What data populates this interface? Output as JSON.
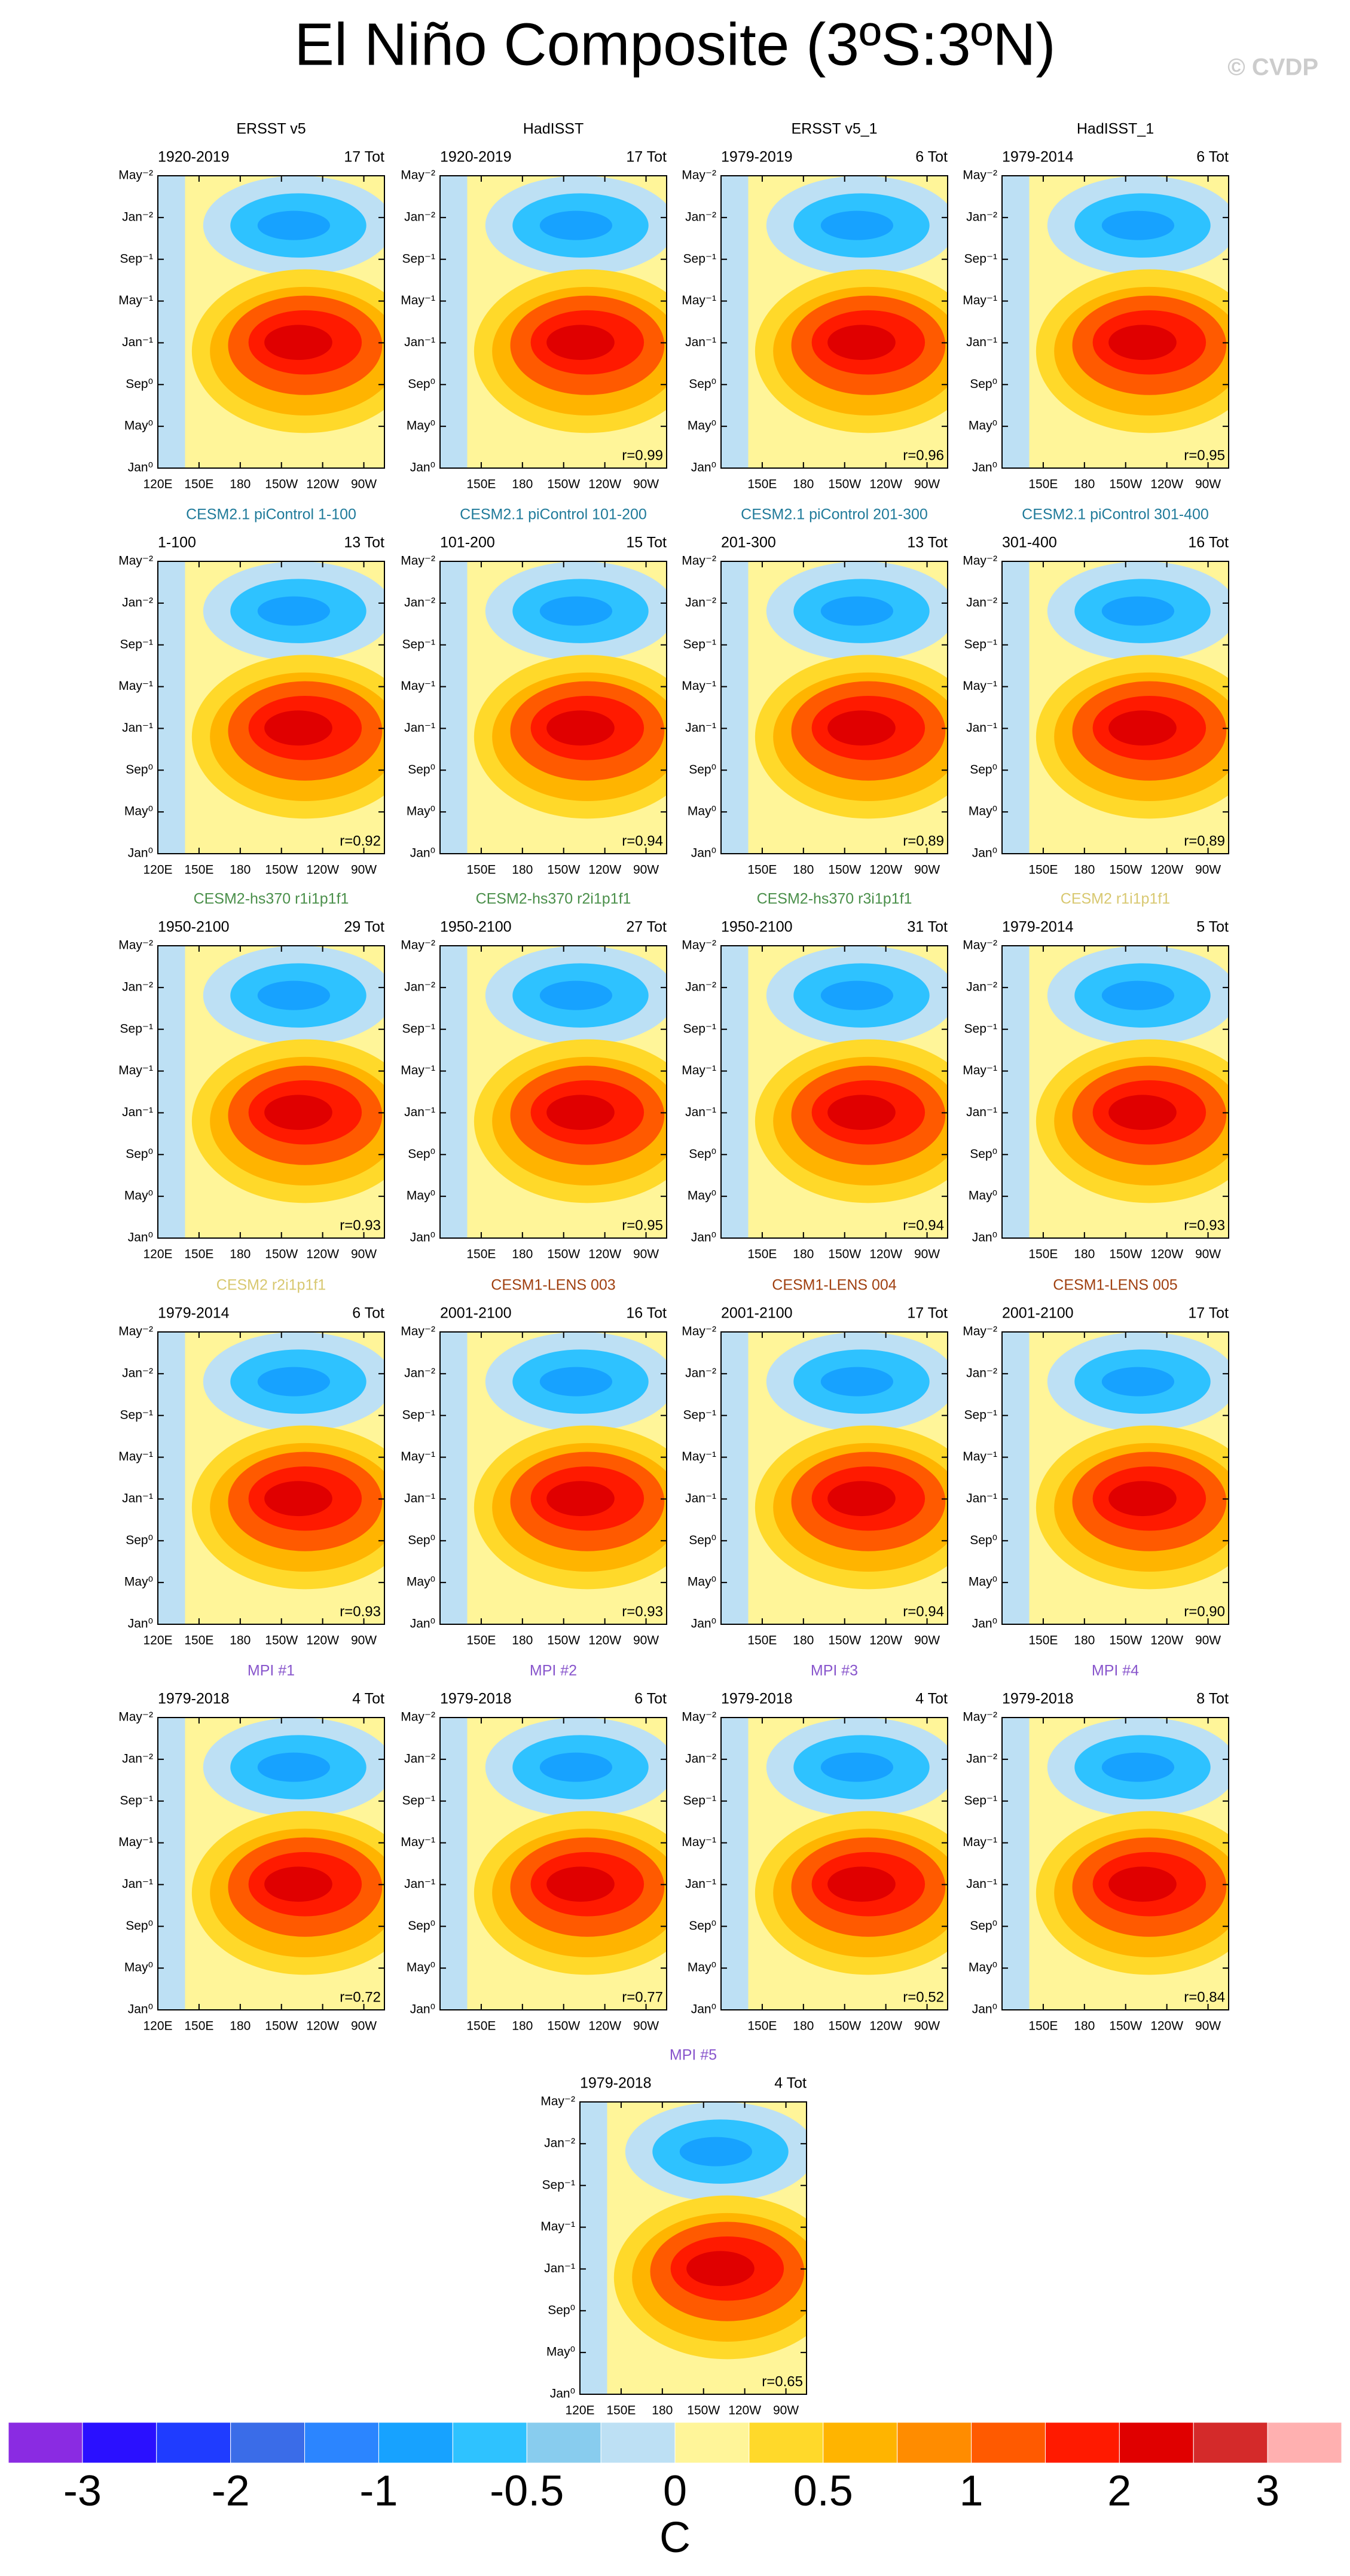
{
  "chart_data": {
    "type": "contour-panels",
    "title": "El Niño Composite (3ºS:3ºN)",
    "watermark": "© CVDP",
    "yaxis_labels": [
      "May⁻²",
      "Jan⁻²",
      "Sep⁻¹",
      "May⁻¹",
      "Jan⁻¹",
      "Sep⁰",
      "May⁰",
      "Jan⁰"
    ],
    "xaxis_labels": [
      "120E",
      "150E",
      "180",
      "150W",
      "120W",
      "90W"
    ],
    "panels": [
      {
        "title": "ERSST v5",
        "color": "#000000",
        "left": "1920-2019",
        "right": "17 Tot"
      },
      {
        "title": "HadISST",
        "color": "#000000",
        "left": "1920-2019",
        "right": "17 Tot",
        "r": "r=0.99"
      },
      {
        "title": "ERSST v5_1",
        "color": "#000000",
        "left": "1979-2019",
        "right": "6 Tot",
        "r": "r=0.96"
      },
      {
        "title": "HadISST_1",
        "color": "#000000",
        "left": "1979-2014",
        "right": "6 Tot",
        "r": "r=0.95"
      },
      {
        "title": "CESM2.1 piControl 1-100",
        "color": "#1f7a9a",
        "left": "1-100",
        "right": "13 Tot",
        "r": "r=0.92"
      },
      {
        "title": "CESM2.1 piControl 101-200",
        "color": "#1f7a9a",
        "left": "101-200",
        "right": "15 Tot",
        "r": "r=0.94"
      },
      {
        "title": "CESM2.1 piControl 201-300",
        "color": "#1f7a9a",
        "left": "201-300",
        "right": "13 Tot",
        "r": "r=0.89"
      },
      {
        "title": "CESM2.1 piControl 301-400",
        "color": "#1f7a9a",
        "left": "301-400",
        "right": "16 Tot",
        "r": "r=0.89"
      },
      {
        "title": "CESM2-hs370 r1i1p1f1",
        "color": "#4a8f4a",
        "left": "1950-2100",
        "right": "29 Tot",
        "r": "r=0.93"
      },
      {
        "title": "CESM2-hs370 r2i1p1f1",
        "color": "#4a8f4a",
        "left": "1950-2100",
        "right": "27 Tot",
        "r": "r=0.95"
      },
      {
        "title": "CESM2-hs370 r3i1p1f1",
        "color": "#4a8f4a",
        "left": "1950-2100",
        "right": "31 Tot",
        "r": "r=0.94"
      },
      {
        "title": "CESM2 r1i1p1f1",
        "color": "#d8c870",
        "left": "1979-2014",
        "right": "5 Tot",
        "r": "r=0.93"
      },
      {
        "title": "CESM2 r2i1p1f1",
        "color": "#d8c870",
        "left": "1979-2014",
        "right": "6 Tot",
        "r": "r=0.93"
      },
      {
        "title": "CESM1-LENS 003",
        "color": "#a04010",
        "left": "2001-2100",
        "right": "16 Tot",
        "r": "r=0.93"
      },
      {
        "title": "CESM1-LENS 004",
        "color": "#a04010",
        "left": "2001-2100",
        "right": "17 Tot",
        "r": "r=0.94"
      },
      {
        "title": "CESM1-LENS 005",
        "color": "#a04010",
        "left": "2001-2100",
        "right": "17 Tot",
        "r": "r=0.90"
      },
      {
        "title": "MPI #1",
        "color": "#8855cc",
        "left": "1979-2018",
        "right": "4 Tot",
        "r": "r=0.72"
      },
      {
        "title": "MPI #2",
        "color": "#8855cc",
        "left": "1979-2018",
        "right": "6 Tot",
        "r": "r=0.77"
      },
      {
        "title": "MPI #3",
        "color": "#8855cc",
        "left": "1979-2018",
        "right": "4 Tot",
        "r": "r=0.52"
      },
      {
        "title": "MPI #4",
        "color": "#8855cc",
        "left": "1979-2018",
        "right": "8 Tot",
        "r": "r=0.84"
      },
      {
        "title": "MPI #5",
        "color": "#8855cc",
        "left": "1979-2018",
        "right": "4 Tot",
        "r": "r=0.65"
      }
    ],
    "colorbar": {
      "colors": [
        "#8a2be2",
        "#2a10ff",
        "#1f3cff",
        "#3a6ce8",
        "#2b85ff",
        "#17a2ff",
        "#2ec2ff",
        "#88ccee",
        "#bde0f4",
        "#fff599",
        "#ffd92a",
        "#ffb400",
        "#ff8c00",
        "#ff5a00",
        "#ff1a00",
        "#e00000",
        "#d42a2a",
        "#ffb0b0"
      ],
      "levels": [
        -3,
        -2,
        -1,
        -0.5,
        0,
        0.5,
        1,
        2,
        3
      ],
      "units": "C"
    }
  }
}
